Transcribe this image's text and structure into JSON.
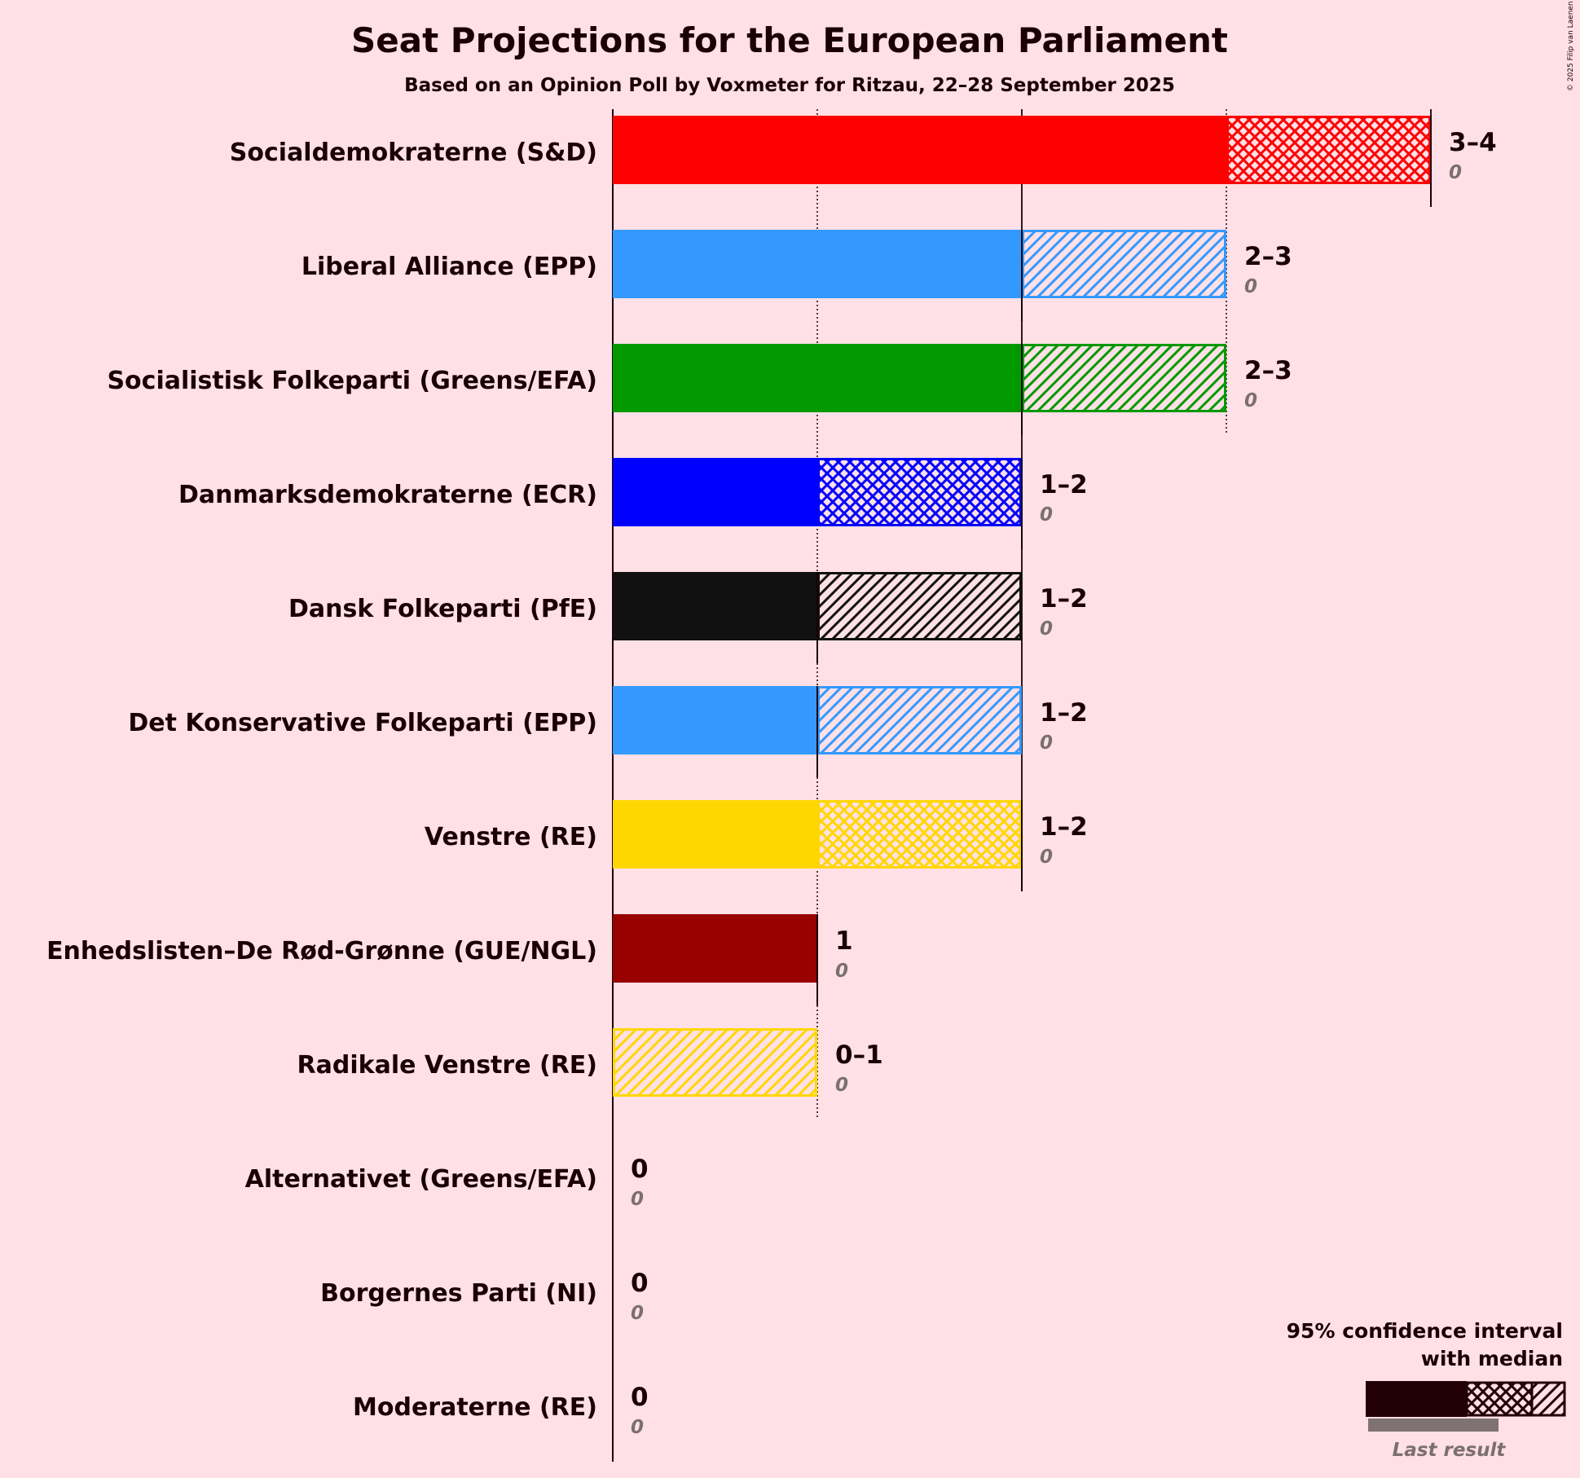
{
  "chart_data": {
    "type": "bar",
    "title": "Seat Projections for the European Parliament",
    "subtitle": "Based on an Opinion Poll by Voxmeter for Ritzau, 22–28 September 2025",
    "copyright": "© 2025 Filip van Laenen",
    "xlim": [
      0,
      4
    ],
    "parties": [
      {
        "name": "Socialdemokraterne (S&D)",
        "color": "#ff0000",
        "low": 3,
        "median": 4,
        "high": 4,
        "label": "3–4",
        "last": "0"
      },
      {
        "name": "Liberal Alliance (EPP)",
        "color": "#3399ff",
        "low": 2,
        "median": 2,
        "high": 3,
        "label": "2–3",
        "last": "0"
      },
      {
        "name": "Socialistisk Folkeparti (Greens/EFA)",
        "color": "#009900",
        "low": 2,
        "median": 2,
        "high": 3,
        "label": "2–3",
        "last": "0"
      },
      {
        "name": "Danmarksdemokraterne (ECR)",
        "color": "#0000ff",
        "low": 1,
        "median": 2,
        "high": 2,
        "label": "1–2",
        "last": "0"
      },
      {
        "name": "Dansk Folkeparti (PfE)",
        "color": "#111111",
        "low": 1,
        "median": 1,
        "high": 2,
        "label": "1–2",
        "last": "0"
      },
      {
        "name": "Det Konservative Folkeparti (EPP)",
        "color": "#3399ff",
        "low": 1,
        "median": 1,
        "high": 2,
        "label": "1–2",
        "last": "0"
      },
      {
        "name": "Venstre (RE)",
        "color": "#ffd700",
        "low": 1,
        "median": 2,
        "high": 2,
        "label": "1–2",
        "last": "0"
      },
      {
        "name": "Enhedslisten–De Rød-Grønne (GUE/NGL)",
        "color": "#990000",
        "low": 1,
        "median": 1,
        "high": 1,
        "label": "1",
        "last": "0"
      },
      {
        "name": "Radikale Venstre (RE)",
        "color": "#ffd700",
        "low": 0,
        "median": 0,
        "high": 1,
        "label": "0–1",
        "last": "0"
      },
      {
        "name": "Alternativet (Greens/EFA)",
        "color": "#00cc66",
        "low": 0,
        "median": 0,
        "high": 0,
        "label": "0",
        "last": "0"
      },
      {
        "name": "Borgernes Parti (NI)",
        "color": "#666666",
        "low": 0,
        "median": 0,
        "high": 0,
        "label": "0",
        "last": "0"
      },
      {
        "name": "Moderaterne (RE)",
        "color": "#aa66cc",
        "low": 0,
        "median": 0,
        "high": 0,
        "label": "0",
        "last": "0"
      }
    ],
    "legend": {
      "line1": "95% confidence interval",
      "line2": "with median",
      "last_result": "Last result",
      "color": "#220006",
      "last_color": "#7f7275"
    }
  }
}
